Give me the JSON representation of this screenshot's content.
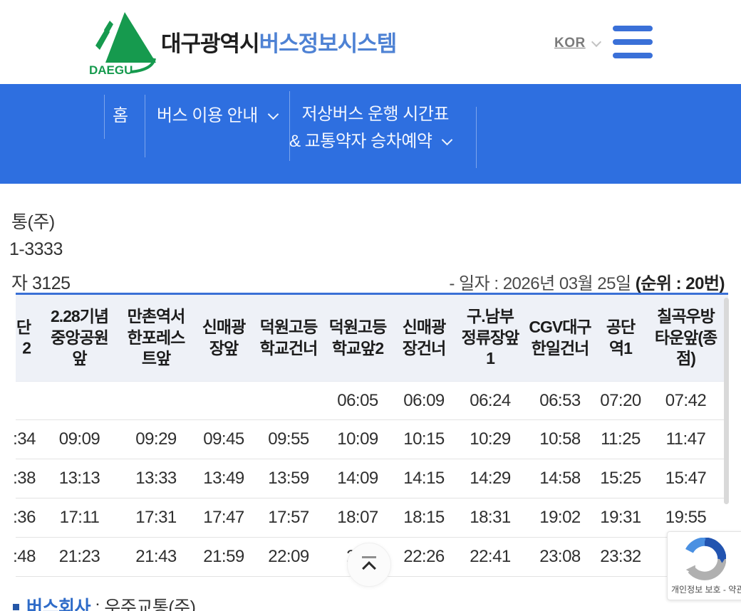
{
  "header": {
    "logo_text": "DAEGU",
    "title_black": "대구광역시",
    "title_blue": "버스정보시스템",
    "lang": "KOR"
  },
  "nav": {
    "home": "홈",
    "guide": "버스 이용 안내",
    "lowbus_line1": "저상버스 운행 시간표",
    "lowbus_line2": "& 교통약자 승차예약"
  },
  "info": {
    "fragment1": "통(주)",
    "fragment2": "1-3333",
    "fragment3": "자 3125",
    "date_label": "- 일자 : 2026년 03월 25일 ",
    "rank_label": "(순위 : 20번)"
  },
  "table": {
    "columns": [
      "단\n2",
      "2.28기념\n중앙공원\n앞",
      "만촌역서\n한포레스\n트앞",
      "신매광\n장앞",
      "덕원고등\n학교건너",
      "덕원고등\n학교앞2",
      "신매광\n장건너",
      "구.남부\n정류장앞\n1",
      "CGV대구\n한일건너",
      "공단\n역1",
      "칠곡우방\n타운앞(종\n점)"
    ],
    "rows": [
      [
        "",
        "",
        "",
        "",
        "",
        "06:05",
        "06:09",
        "06:24",
        "06:53",
        "07:20",
        "07:42"
      ],
      [
        ":34",
        "09:09",
        "09:29",
        "09:45",
        "09:55",
        "10:09",
        "10:15",
        "10:29",
        "10:58",
        "11:25",
        "11:47"
      ],
      [
        ":38",
        "13:13",
        "13:33",
        "13:49",
        "13:59",
        "14:09",
        "14:15",
        "14:29",
        "14:58",
        "15:25",
        "15:47"
      ],
      [
        ":36",
        "17:11",
        "17:31",
        "17:47",
        "17:57",
        "18:07",
        "18:15",
        "18:31",
        "19:02",
        "19:31",
        "19:55"
      ],
      [
        ":48",
        "21:23",
        "21:43",
        "21:59",
        "22:09",
        "22:",
        "22:26",
        "22:41",
        "23:08",
        "23:32",
        ""
      ]
    ]
  },
  "footer": {
    "company_label": "버스회사",
    "company_value": " : 우주교통(주)"
  },
  "widgets": {
    "captcha_text": "개인정보 보호 - 약관"
  },
  "colors": {
    "nav_blue": "#2e6fe0",
    "brand_blue": "#4e82d4",
    "logo_green": "#169a4e",
    "table_border_blue": "#3a70d6",
    "header_bg": "#eef1f7"
  }
}
